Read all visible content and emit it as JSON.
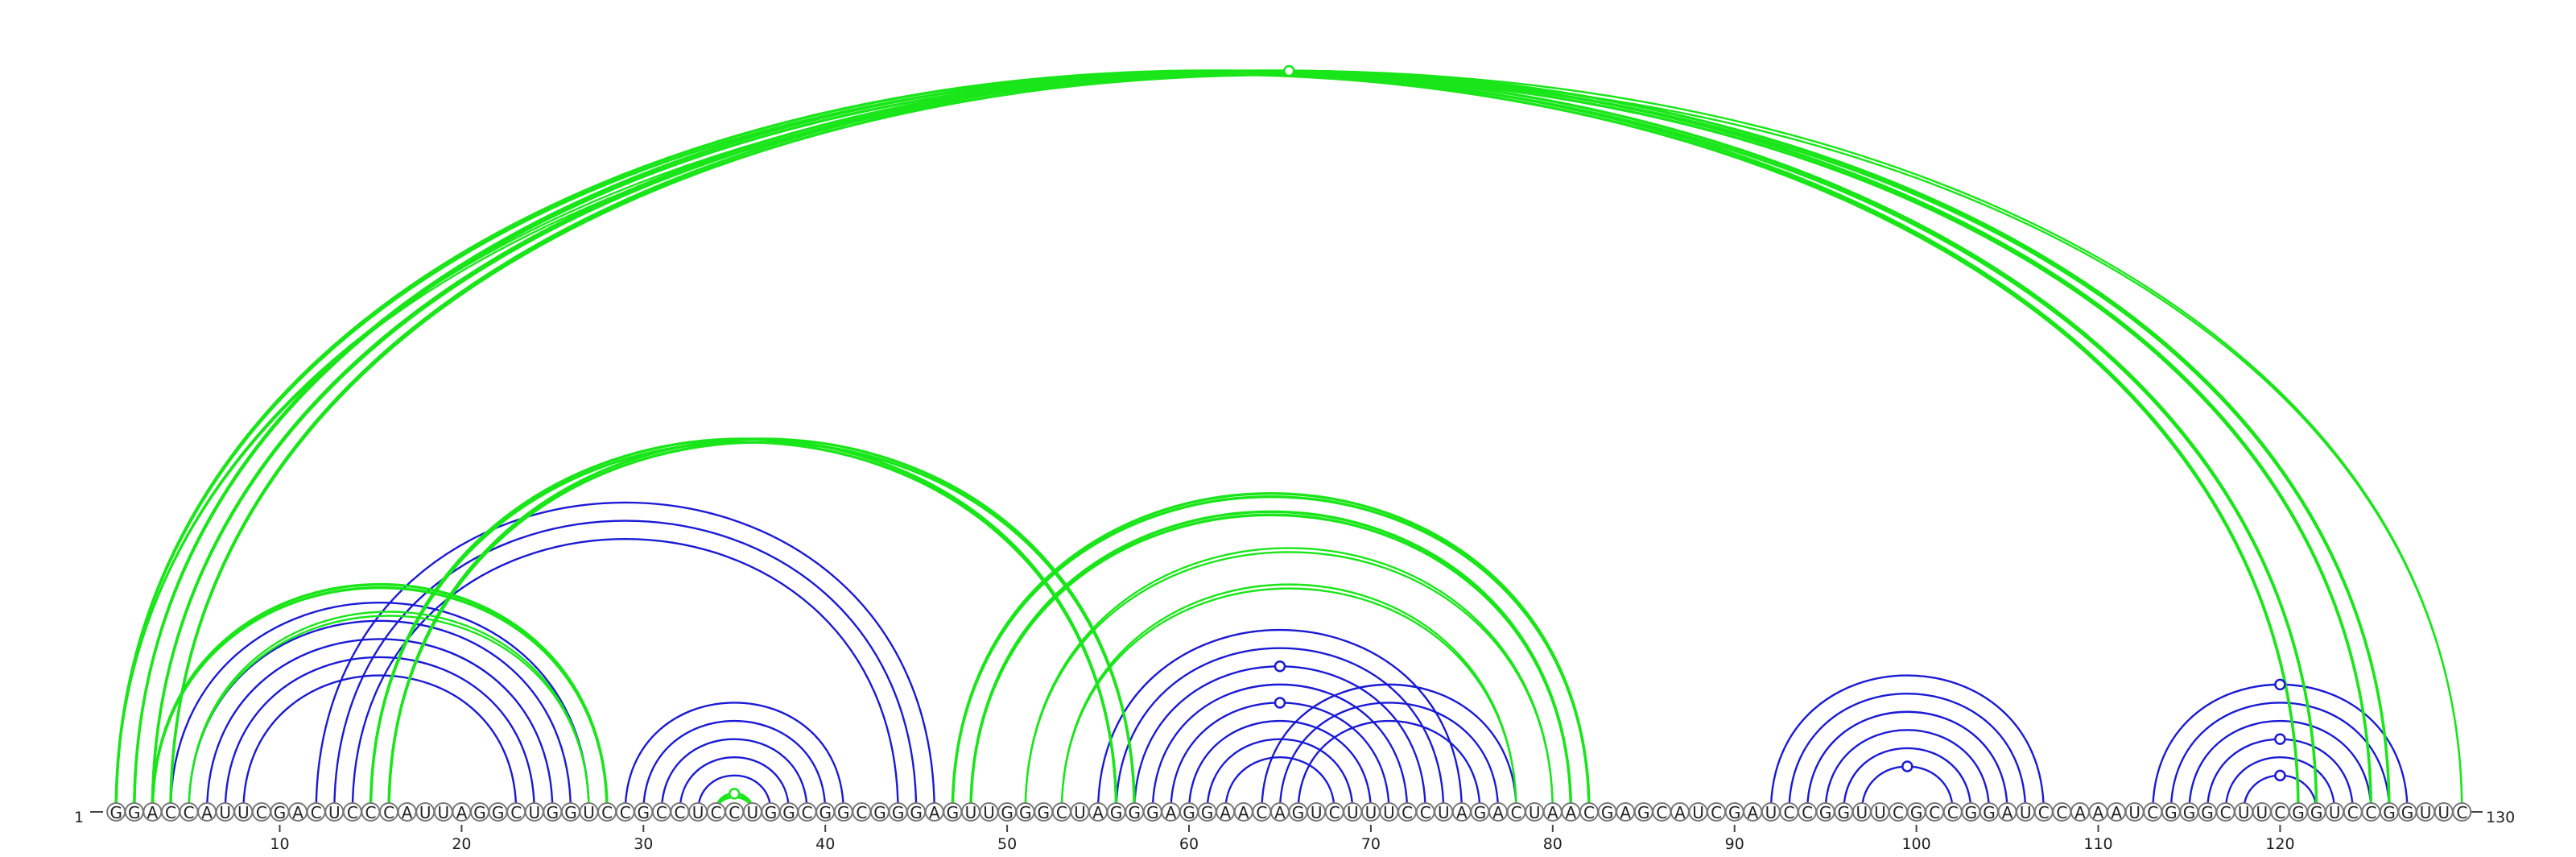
{
  "diagram": {
    "type": "rna-arc-diagram",
    "sequence": "GGACCAUUCGACUCCCAUUAGGCUGGUCCGCCUCCUGGCGGCGGGAGUUGGGCUAGGGAGGAACAGUCUUUCCUAGACUAACGAGCAUCGAUCCGGUUCGCCGGAUCCAAAUCGGGCUUCGGUCCGGUUC",
    "start_label": "1",
    "end_label": "130",
    "ticks": [
      10,
      20,
      30,
      40,
      50,
      60,
      70,
      80,
      90,
      100,
      110,
      120
    ],
    "colors": {
      "green": "#19e619",
      "blue": "#1a1ad6",
      "nucleotide_outline": "#777777"
    },
    "green_arcs": [
      {
        "i": 1,
        "j": 121,
        "style": "bold"
      },
      {
        "i": 2,
        "j": 122,
        "style": "bold"
      },
      {
        "i": 3,
        "j": 125,
        "style": "bold"
      },
      {
        "i": 4,
        "j": 126,
        "style": "bold"
      },
      {
        "i": 1,
        "j": 130,
        "style": "thin"
      },
      {
        "i": 3,
        "j": 28,
        "style": "bold"
      },
      {
        "i": 5,
        "j": 27,
        "style": "thin"
      },
      {
        "i": 15,
        "j": 56,
        "style": "bold"
      },
      {
        "i": 16,
        "j": 57,
        "style": "bold"
      },
      {
        "i": 47,
        "j": 82,
        "style": "bold"
      },
      {
        "i": 48,
        "j": 81,
        "style": "bold"
      },
      {
        "i": 51,
        "j": 80,
        "style": "thin"
      },
      {
        "i": 53,
        "j": 78,
        "style": "thin"
      },
      {
        "i": 34,
        "j": 36,
        "style": "bold"
      }
    ],
    "blue_arcs": [
      {
        "i": 4,
        "j": 27
      },
      {
        "i": 5,
        "j": 26
      },
      {
        "i": 6,
        "j": 25
      },
      {
        "i": 7,
        "j": 24
      },
      {
        "i": 8,
        "j": 23
      },
      {
        "i": 12,
        "j": 46
      },
      {
        "i": 13,
        "j": 45
      },
      {
        "i": 14,
        "j": 44
      },
      {
        "i": 29,
        "j": 41
      },
      {
        "i": 30,
        "j": 40
      },
      {
        "i": 31,
        "j": 39
      },
      {
        "i": 32,
        "j": 38
      },
      {
        "i": 33,
        "j": 37
      },
      {
        "i": 55,
        "j": 75
      },
      {
        "i": 56,
        "j": 74
      },
      {
        "i": 57,
        "j": 73
      },
      {
        "i": 58,
        "j": 72
      },
      {
        "i": 59,
        "j": 71
      },
      {
        "i": 60,
        "j": 70
      },
      {
        "i": 61,
        "j": 69
      },
      {
        "i": 62,
        "j": 68
      },
      {
        "i": 64,
        "j": 78
      },
      {
        "i": 65,
        "j": 77
      },
      {
        "i": 66,
        "j": 76
      },
      {
        "i": 92,
        "j": 107
      },
      {
        "i": 93,
        "j": 106
      },
      {
        "i": 94,
        "j": 105
      },
      {
        "i": 95,
        "j": 104
      },
      {
        "i": 96,
        "j": 103
      },
      {
        "i": 97,
        "j": 102
      },
      {
        "i": 113,
        "j": 127
      },
      {
        "i": 114,
        "j": 126
      },
      {
        "i": 115,
        "j": 125
      },
      {
        "i": 116,
        "j": 124
      },
      {
        "i": 117,
        "j": 123
      },
      {
        "i": 118,
        "j": 122
      }
    ],
    "markers": [
      {
        "arc_color": "green",
        "i": 1,
        "j": 130,
        "filled": false
      },
      {
        "arc_color": "green",
        "i": 34,
        "j": 36,
        "filled": true
      },
      {
        "arc_color": "blue",
        "i": 57,
        "j": 73,
        "filled": false
      },
      {
        "arc_color": "blue",
        "i": 59,
        "j": 71,
        "filled": false
      },
      {
        "arc_color": "blue",
        "i": 97,
        "j": 102,
        "filled": false
      },
      {
        "arc_color": "blue",
        "i": 113,
        "j": 127,
        "filled": false
      },
      {
        "arc_color": "blue",
        "i": 116,
        "j": 124,
        "filled": false
      },
      {
        "arc_color": "blue",
        "i": 118,
        "j": 122,
        "filled": false
      }
    ]
  }
}
